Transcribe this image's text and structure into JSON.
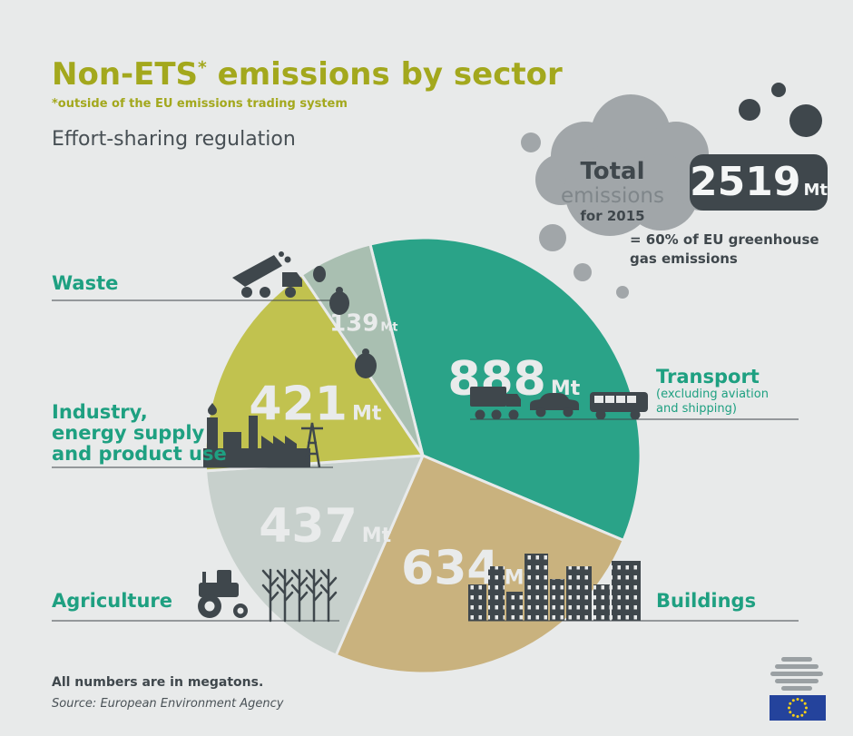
{
  "header": {
    "title_main": "Non-ETS",
    "title_asterisk": "*",
    "title_tail": " emissions by sector",
    "subtitle": "*outside of the EU emissions trading system",
    "program": "Effort-sharing regulation"
  },
  "total_cloud": {
    "line1": "Total",
    "line2": "emissions",
    "line3": "for 2015",
    "value": "2519",
    "unit": "Mt",
    "note_line1": "= 60% of EU greenhouse",
    "note_line2": "gas emissions"
  },
  "chart_data": {
    "type": "pie",
    "title": "Non-ETS emissions by sector (Effort-sharing regulation)",
    "unit": "Mt",
    "total_value": 2519,
    "total_label": "Total emissions for 2015",
    "total_note": "= 60% of EU greenhouse gas emissions",
    "start_angle_deg": -14,
    "legend_position": "around",
    "slices": [
      {
        "label": "Transport",
        "sublabel": "(excluding aviation and shipping)",
        "sublabel_lines": [
          "(excluding aviation",
          "and shipping)"
        ],
        "value": 888,
        "color": "#2aa388"
      },
      {
        "label": "Buildings",
        "value": 634,
        "color": "#c9b27e"
      },
      {
        "label": "Agriculture",
        "value": 437,
        "color": "#c7d0cc"
      },
      {
        "label": "Industry, energy supply and product use",
        "label_lines": [
          "Industry,",
          "energy supply",
          "and product use"
        ],
        "value": 421,
        "color": "#c1c24f"
      },
      {
        "label": "Waste",
        "value": 139,
        "color": "#a9bfb1"
      }
    ]
  },
  "footer": {
    "note": "All numbers are in megatons.",
    "source": "Source: European Environment Agency"
  },
  "colors": {
    "background": "#e8eaea",
    "title_olive": "#a3a81d",
    "sector_label_teal": "#1ea081",
    "dark": "#3f474c",
    "cloud_gray": "#a1a6a9",
    "value_text": "#e9ebeb",
    "eu_blue": "#24439c",
    "eu_star_yellow": "#f7d117"
  }
}
